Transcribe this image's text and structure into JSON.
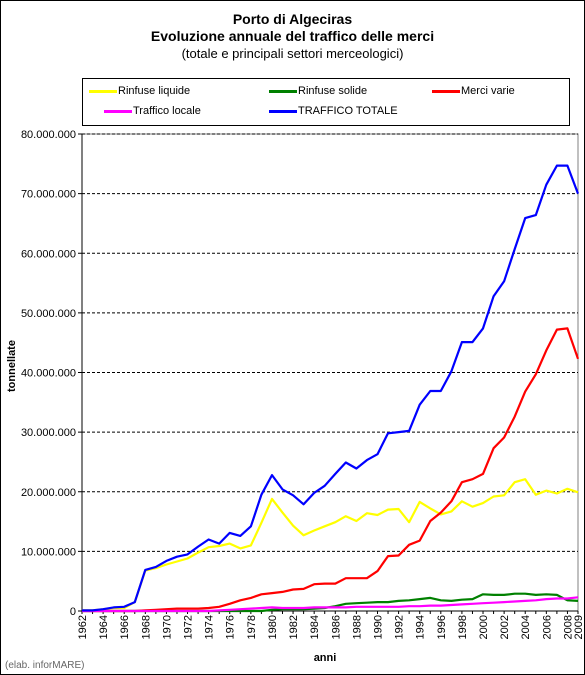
{
  "title": "Porto di Algeciras",
  "subtitle": "Evoluzione annuale del traffico delle merci",
  "subtitle2": "(totale e principali settori merceologici)",
  "credit": "(elab. inforMARE)",
  "chart_data": {
    "type": "line",
    "title": "Porto di Algeciras",
    "xlabel": "anni",
    "ylabel": "tonnellate",
    "ylim": [
      0,
      80000000
    ],
    "y_ticks": [
      "0",
      "10.000.000",
      "20.000.000",
      "30.000.000",
      "40.000.000",
      "50.000.000",
      "60.000.000",
      "70.000.000",
      "80.000.000"
    ],
    "grid": true,
    "legend_position": "top",
    "x": [
      1962,
      1963,
      1964,
      1965,
      1966,
      1967,
      1968,
      1969,
      1970,
      1971,
      1972,
      1973,
      1974,
      1975,
      1976,
      1977,
      1978,
      1979,
      1980,
      1981,
      1982,
      1983,
      1984,
      1985,
      1986,
      1987,
      1988,
      1989,
      1990,
      1991,
      1992,
      1993,
      1994,
      1995,
      1996,
      1997,
      1998,
      1999,
      2000,
      2001,
      2002,
      2003,
      2004,
      2005,
      2006,
      2007,
      2008,
      2009
    ],
    "x_tick_labels": [
      "1962",
      "1964",
      "1966",
      "1968",
      "1970",
      "1972",
      "1974",
      "1976",
      "1978",
      "1980",
      "1982",
      "1984",
      "1986",
      "1988",
      "1990",
      "1992",
      "1994",
      "1996",
      "1998",
      "2000",
      "2002",
      "2004",
      "2006",
      "2008",
      "2009"
    ],
    "series": [
      {
        "name": "Rinfuse liquide",
        "color": "#ffff00",
        "values": [
          100000,
          100000,
          300000,
          500000,
          500000,
          1500000,
          6800000,
          7200000,
          7800000,
          8300000,
          8800000,
          9800000,
          10700000,
          10900000,
          11300000,
          10500000,
          11000000,
          14800000,
          18800000,
          16500000,
          14300000,
          12700000,
          13500000,
          14200000,
          14900000,
          15900000,
          15100000,
          16400000,
          16100000,
          17000000,
          17100000,
          14900000,
          18300000,
          17200000,
          16200000,
          16700000,
          18400000,
          17500000,
          18100000,
          19200000,
          19400000,
          21600000,
          22100000,
          19500000,
          20200000,
          19700000,
          20500000,
          19900000
        ]
      },
      {
        "name": "Rinfuse solide",
        "color": "#008000",
        "values": [
          0,
          0,
          0,
          0,
          0,
          0,
          0,
          0,
          0,
          0,
          0,
          0,
          0,
          0,
          0,
          0,
          0,
          0,
          200000,
          300000,
          300000,
          300000,
          400000,
          500000,
          800000,
          1200000,
          1300000,
          1400000,
          1500000,
          1500000,
          1700000,
          1800000,
          2000000,
          2200000,
          1800000,
          1700000,
          1900000,
          2000000,
          2800000,
          2700000,
          2700000,
          2900000,
          2900000,
          2700000,
          2800000,
          2700000,
          1800000,
          1700000
        ]
      },
      {
        "name": "Merci varie",
        "color": "#ff0000",
        "values": [
          0,
          0,
          0,
          0,
          0,
          0,
          100000,
          200000,
          300000,
          400000,
          400000,
          400000,
          500000,
          700000,
          1200000,
          1800000,
          2200000,
          2800000,
          3000000,
          3200000,
          3600000,
          3700000,
          4500000,
          4600000,
          4600000,
          5500000,
          5500000,
          5500000,
          6700000,
          9200000,
          9300000,
          11100000,
          11800000,
          15100000,
          16500000,
          18400000,
          21600000,
          22100000,
          23000000,
          27300000,
          29100000,
          32600000,
          36800000,
          39700000,
          43700000,
          47200000,
          47400000,
          42300000
        ]
      },
      {
        "name": "Traffico locale",
        "color": "#ff00ff",
        "values": [
          0,
          0,
          0,
          0,
          0,
          0,
          0,
          0,
          0,
          0,
          0,
          0,
          0,
          100000,
          200000,
          300000,
          400000,
          500000,
          600000,
          500000,
          500000,
          500000,
          600000,
          600000,
          600000,
          600000,
          700000,
          700000,
          700000,
          700000,
          700000,
          800000,
          800000,
          900000,
          900000,
          1000000,
          1100000,
          1200000,
          1300000,
          1400000,
          1500000,
          1600000,
          1700000,
          1800000,
          2000000,
          2100000,
          2100000,
          2300000
        ]
      },
      {
        "name": "TRAFFICO TOTALE",
        "color": "#0000ff",
        "values": [
          100000,
          100000,
          300000,
          600000,
          700000,
          1500000,
          6900000,
          7400000,
          8400000,
          9100000,
          9500000,
          10800000,
          12000000,
          11300000,
          13100000,
          12600000,
          14200000,
          19500000,
          22800000,
          20400000,
          19400000,
          17900000,
          19800000,
          21000000,
          23000000,
          24900000,
          23900000,
          25300000,
          26300000,
          29800000,
          30000000,
          30200000,
          34600000,
          36900000,
          36900000,
          40200000,
          45100000,
          45100000,
          47400000,
          52800000,
          55300000,
          60700000,
          65900000,
          66400000,
          71500000,
          74700000,
          74700000,
          70000000
        ]
      }
    ]
  }
}
